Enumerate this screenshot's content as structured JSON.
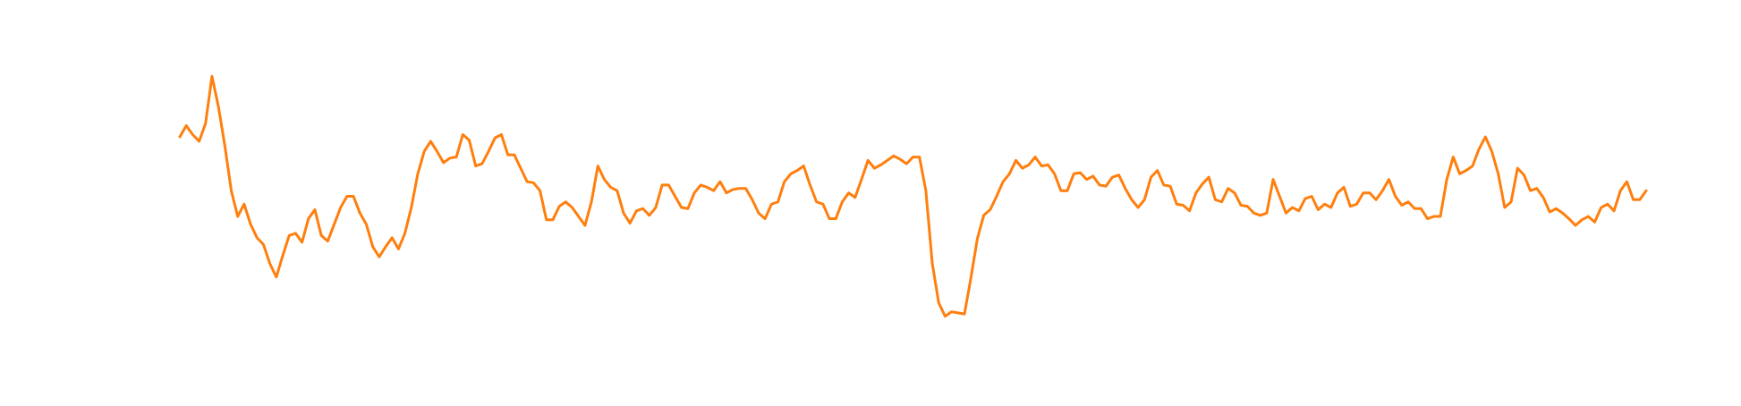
{
  "chart_data": {
    "type": "line",
    "color": "#ff7f0e",
    "ylim": [
      -62,
      300
    ],
    "values": [
      178,
      188,
      180,
      174,
      190,
      232,
      205,
      170,
      130,
      107,
      118,
      100,
      88,
      82,
      65,
      53,
      72,
      90,
      92,
      84,
      105,
      113,
      90,
      85,
      100,
      115,
      125,
      125,
      110,
      100,
      80,
      71,
      80,
      88,
      78,
      92,
      115,
      145,
      165,
      174,
      165,
      155,
      159,
      160,
      180,
      175,
      152,
      154,
      165,
      177,
      180,
      162,
      162,
      150,
      138,
      137,
      130,
      104,
      104,
      116,
      120,
      115,
      107,
      99,
      120,
      152,
      140,
      133,
      130,
      110,
      101,
      112,
      114,
      108,
      115,
      135,
      135,
      125,
      115,
      114,
      128,
      135,
      133,
      130,
      138,
      128,
      131,
      132,
      132,
      122,
      110,
      105,
      118,
      120,
      138,
      145,
      148,
      152,
      135,
      120,
      118,
      105,
      105,
      120,
      128,
      124,
      140,
      157,
      150,
      153,
      157,
      161,
      158,
      154,
      160,
      160,
      130,
      65,
      30,
      18,
      22,
      21,
      20,
      52,
      87,
      108,
      113,
      125,
      138,
      145,
      157,
      150,
      153,
      160,
      152,
      153,
      145,
      130,
      130,
      145,
      146,
      140,
      143,
      135,
      134,
      142,
      144,
      132,
      122,
      115,
      122,
      142,
      148,
      135,
      134,
      118,
      117,
      112,
      128,
      136,
      142,
      122,
      120,
      132,
      128,
      117,
      116,
      110,
      108,
      110,
      140,
      125,
      110,
      115,
      112,
      123,
      125,
      113,
      118,
      115,
      128,
      133,
      116,
      118,
      128,
      128,
      122,
      130,
      140,
      125,
      117,
      120,
      114,
      114,
      105,
      107,
      107,
      140,
      160,
      145,
      148,
      152,
      167,
      178,
      165,
      145,
      115,
      120,
      150,
      144,
      130,
      132,
      124,
      111,
      114,
      110,
      105,
      99,
      104,
      107,
      102,
      115,
      118,
      112,
      130,
      138,
      122,
      122,
      130
    ]
  }
}
